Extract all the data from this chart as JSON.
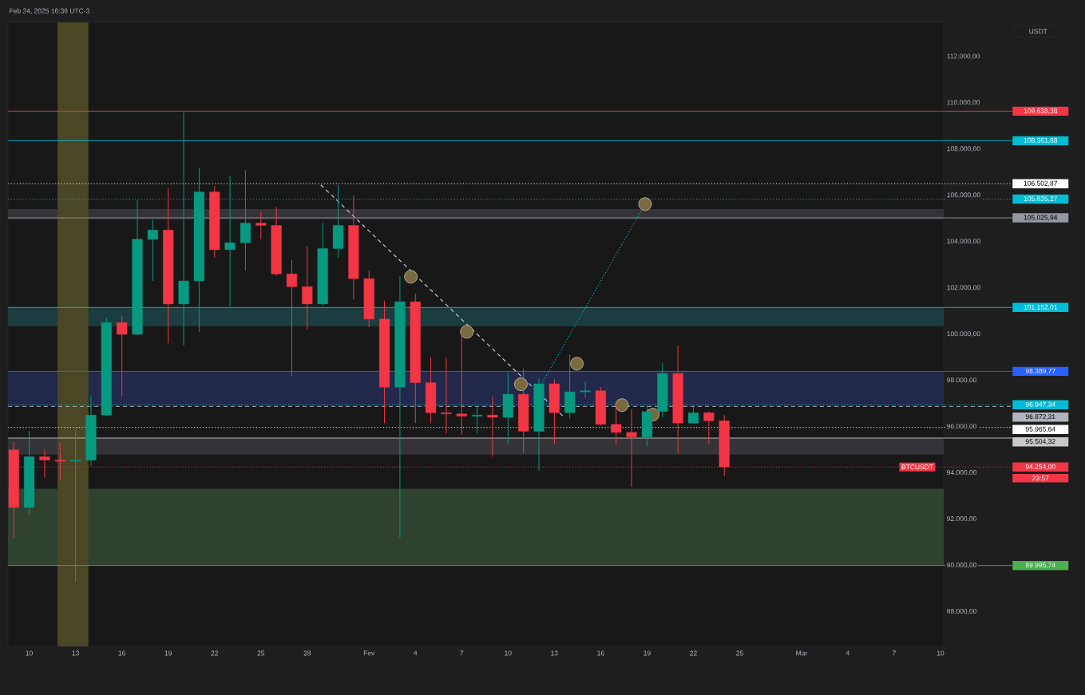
{
  "chart_data": {
    "type": "candlestick",
    "title": "Feb 24, 2025 16:36 UTC-3",
    "x": [
      "2025-01-09",
      "2025-01-10",
      "2025-01-11",
      "2025-01-12",
      "2025-01-13",
      "2025-01-14",
      "2025-01-15",
      "2025-01-16",
      "2025-01-17",
      "2025-01-18",
      "2025-01-19",
      "2025-01-20",
      "2025-01-21",
      "2025-01-22",
      "2025-01-23",
      "2025-01-24",
      "2025-01-25",
      "2025-01-26",
      "2025-01-27",
      "2025-01-28",
      "2025-01-29",
      "2025-01-30",
      "2025-01-31",
      "2025-02-01",
      "2025-02-02",
      "2025-02-03",
      "2025-02-04",
      "2025-02-05",
      "2025-02-06",
      "2025-02-07",
      "2025-02-08",
      "2025-02-09",
      "2025-02-10",
      "2025-02-11",
      "2025-02-12",
      "2025-02-13",
      "2025-02-14",
      "2025-02-15",
      "2025-02-16",
      "2025-02-17",
      "2025-02-18",
      "2025-02-19",
      "2025-02-20",
      "2025-02-21",
      "2025-02-22",
      "2025-02-23",
      "2025-02-24"
    ],
    "ohlc": [
      [
        95000,
        95350,
        91200,
        92500
      ],
      [
        92500,
        95800,
        92200,
        94700
      ],
      [
        94700,
        95000,
        93800,
        94550
      ],
      [
        94550,
        95300,
        93700,
        94500
      ],
      [
        94500,
        95900,
        89300,
        94550
      ],
      [
        94550,
        97350,
        94300,
        96500
      ],
      [
        96500,
        100700,
        96450,
        100500
      ],
      [
        100500,
        100800,
        97300,
        99990
      ],
      [
        99990,
        105800,
        99950,
        104100
      ],
      [
        104100,
        104950,
        102300,
        104500
      ],
      [
        104500,
        106300,
        99600,
        101300
      ],
      [
        101300,
        109600,
        99500,
        102300
      ],
      [
        102300,
        107200,
        100100,
        106150
      ],
      [
        106150,
        106400,
        103300,
        103650
      ],
      [
        103650,
        106850,
        101200,
        103950
      ],
      [
        103950,
        107100,
        102750,
        104800
      ],
      [
        104800,
        105300,
        104100,
        104700
      ],
      [
        104700,
        105500,
        102500,
        102600
      ],
      [
        102600,
        103200,
        98200,
        102050
      ],
      [
        102050,
        103800,
        100200,
        101300
      ],
      [
        101300,
        104800,
        101250,
        103700
      ],
      [
        103700,
        106450,
        103300,
        104700
      ],
      [
        104700,
        106000,
        101500,
        102400
      ],
      [
        102400,
        102750,
        100300,
        100650
      ],
      [
        100650,
        101450,
        96150,
        97700
      ],
      [
        97700,
        102500,
        91200,
        101400
      ],
      [
        101400,
        101750,
        96150,
        97900
      ],
      [
        97900,
        99000,
        96150,
        96600
      ],
      [
        96600,
        99000,
        95700,
        96550
      ],
      [
        96550,
        100150,
        95650,
        96450
      ],
      [
        96450,
        96900,
        95700,
        96500
      ],
      [
        96500,
        97300,
        94700,
        96400
      ],
      [
        96400,
        98350,
        95250,
        97400
      ],
      [
        97400,
        98500,
        94850,
        95800
      ],
      [
        95800,
        98100,
        94100,
        97850
      ],
      [
        97850,
        98050,
        95250,
        96600
      ],
      [
        96600,
        99100,
        96350,
        97500
      ],
      [
        97500,
        97950,
        97250,
        97550
      ],
      [
        97550,
        97700,
        96050,
        96100
      ],
      [
        96100,
        97050,
        95200,
        95750
      ],
      [
        95750,
        96750,
        93400,
        95550
      ],
      [
        95550,
        96900,
        95150,
        96650
      ],
      [
        96650,
        98750,
        96400,
        98300
      ],
      [
        98300,
        99500,
        94850,
        96150
      ],
      [
        96150,
        96950,
        96150,
        96600
      ],
      [
        96600,
        96650,
        95250,
        96250
      ],
      [
        96250,
        96500,
        93850,
        94254
      ]
    ],
    "colors": [
      "#f23645",
      "#089981",
      "#f23645",
      "#f23645",
      "#089981",
      "#089981",
      "#089981",
      "#f23645",
      "#089981",
      "#089981",
      "#f23645",
      "#089981",
      "#089981",
      "#f23645",
      "#089981",
      "#089981",
      "#f23645",
      "#f23645",
      "#f23645",
      "#f23645",
      "#089981",
      "#089981",
      "#f23645",
      "#f23645",
      "#f23645",
      "#089981",
      "#f23645",
      "#f23645",
      "#f23645",
      "#f23645",
      "#089981",
      "#f23645",
      "#089981",
      "#f23645",
      "#089981",
      "#f23645",
      "#089981",
      "#089981",
      "#f23645",
      "#f23645",
      "#f23645",
      "#089981",
      "#089981",
      "#f23645",
      "#089981",
      "#f23645",
      "#f23645"
    ],
    "series": [
      {
        "type": "line",
        "color": "#d1d4dc",
        "line_style": "dashed",
        "x": [
          "2025-01-28T21:00",
          "2025-02-13T15:00"
        ],
        "values": [
          106450,
          96410
        ]
      },
      {
        "type": "line",
        "color": "#00bcd4",
        "line_style": "dotted",
        "x": [
          "2025-02-11T15:00",
          "2025-02-18T21:00"
        ],
        "values": [
          97210,
          105620
        ]
      },
      {
        "type": "scatter",
        "color": "#7a6a40",
        "marker": "circle",
        "x": [
          "2025-02-03T17:00",
          "2025-02-07T08:00",
          "2025-02-10T20:00",
          "2025-02-14T11:00",
          "2025-02-17T09:00",
          "2025-02-19T09:00",
          "2025-02-18T21:00"
        ],
        "values": [
          102480,
          100100,
          97830,
          98720,
          96930,
          96520,
          105620
        ]
      }
    ],
    "xlim": [
      "2025-01-08T15:00",
      "2025-03-10T05:00"
    ],
    "xticks": [
      {
        "value": "2025-01-10",
        "label": "10"
      },
      {
        "value": "2025-01-13",
        "label": "13"
      },
      {
        "value": "2025-01-16",
        "label": "16"
      },
      {
        "value": "2025-01-19",
        "label": "19"
      },
      {
        "value": "2025-01-22",
        "label": "22"
      },
      {
        "value": "2025-01-25",
        "label": "25"
      },
      {
        "value": "2025-01-28",
        "label": "28"
      },
      {
        "value": "2025-02-01",
        "label": "Fev"
      },
      {
        "value": "2025-02-04",
        "label": "4"
      },
      {
        "value": "2025-02-07",
        "label": "7"
      },
      {
        "value": "2025-02-10",
        "label": "10"
      },
      {
        "value": "2025-02-13",
        "label": "13"
      },
      {
        "value": "2025-02-16",
        "label": "16"
      },
      {
        "value": "2025-02-19",
        "label": "19"
      },
      {
        "value": "2025-02-22",
        "label": "22"
      },
      {
        "value": "2025-02-25",
        "label": "25"
      },
      {
        "value": "2025-03-01",
        "label": "Mar"
      },
      {
        "value": "2025-03-04",
        "label": "4"
      },
      {
        "value": "2025-03-07",
        "label": "7"
      },
      {
        "value": "2025-03-10",
        "label": "10"
      }
    ],
    "ylim": [
      86500,
      113480
    ],
    "yticks": [
      {
        "value": 88000,
        "label": "88.000,00"
      },
      {
        "value": 90000,
        "label": "90.000,00"
      },
      {
        "value": 92000,
        "label": "92.000,00"
      },
      {
        "value": 94000,
        "label": "94.000,00"
      },
      {
        "value": 96000,
        "label": "96.000,00"
      },
      {
        "value": 98000,
        "label": "98.000,00"
      },
      {
        "value": 100000,
        "label": "100.000,00"
      },
      {
        "value": 102000,
        "label": "102.000,00"
      },
      {
        "value": 104000,
        "label": "104.000,00"
      },
      {
        "value": 106000,
        "label": "106.000,00"
      },
      {
        "value": 108000,
        "label": "108.000,00"
      },
      {
        "value": 110000,
        "label": "110.000,00"
      },
      {
        "value": 112000,
        "label": "112.000,00"
      }
    ],
    "bands": [
      {
        "axis": "y",
        "from": 104970,
        "to": 105410,
        "color": "#343438"
      },
      {
        "axis": "y",
        "from": 100340,
        "to": 101152,
        "color": "#1b3d40"
      },
      {
        "axis": "y",
        "from": 96872,
        "to": 98390,
        "color": "#22294a"
      },
      {
        "axis": "y",
        "from": 94790,
        "to": 95504,
        "color": "#343438"
      },
      {
        "axis": "y",
        "from": 89996,
        "to": 93310,
        "color": "#2f4230"
      },
      {
        "axis": "x",
        "from": "2025-01-11T20:00",
        "to": "2025-01-13T20:00",
        "color": "#4a4726"
      }
    ],
    "ref_lines": [
      {
        "axis": "y",
        "value": 109638.38,
        "label": "109.638,38",
        "color": "#f23645",
        "line_style": "solid"
      },
      {
        "axis": "y",
        "value": 108361.88,
        "label": "108.361,88",
        "color": "#00bcd4",
        "line_style": "solid"
      },
      {
        "axis": "y",
        "value": 105025.94,
        "label": "105.025,94",
        "color": "#9598a1",
        "line_style": "solid"
      },
      {
        "axis": "y",
        "value": 101152.01,
        "label": "101.152,01",
        "color": "#00bcd4",
        "line_style": "solid"
      },
      {
        "axis": "y",
        "value": 98389.77,
        "label": "98.389,77",
        "color": "#2962ff",
        "line_style": "solid"
      },
      {
        "axis": "y",
        "value": 96872.31,
        "label": "96.872,31",
        "color": "#b2b5be",
        "line_style": "dashed"
      },
      {
        "axis": "y",
        "value": 95504.32,
        "label": "95.504,32",
        "color": "#c8c8c8",
        "line_style": "solid"
      },
      {
        "axis": "y",
        "value": 94254.0,
        "label": "94.254,00",
        "color": "#f23645",
        "line_style": "dotted"
      },
      {
        "axis": "y",
        "value": 89995.74,
        "label": "89.995,74",
        "color": "#4caf50",
        "line_style": "solid"
      },
      {
        "axis": "y",
        "value": 106502.87,
        "label": "106.502,87",
        "color": "#ffffff",
        "line_style": "dotted"
      },
      {
        "axis": "y",
        "value": 105835.27,
        "label": "105.835,27",
        "color": "#00bcd4",
        "line_style": "dotted"
      },
      {
        "axis": "y",
        "value": 96947.34,
        "label": "96.947,34",
        "color": "#00bcd4",
        "line_style": "dotted"
      },
      {
        "axis": "y",
        "value": 95965.64,
        "label": "95.965,64",
        "color": "#ffffff",
        "line_style": "dotted"
      }
    ],
    "annotations": [
      "USDT",
      {
        "text": "BTCUSDT",
        "x": "2025-03-08T12:00",
        "y": 94254.0
      },
      "23:57"
    ]
  }
}
